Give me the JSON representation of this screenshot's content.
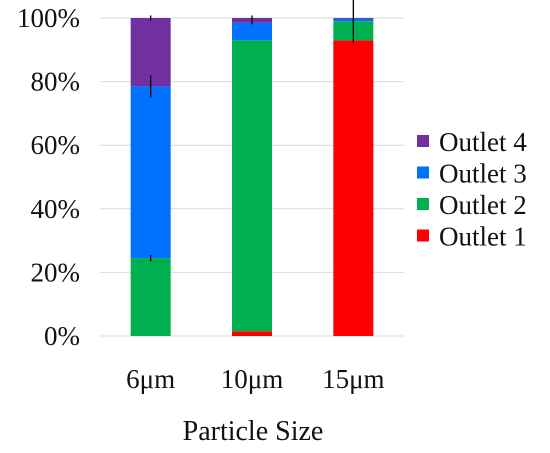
{
  "chart_data": {
    "type": "bar",
    "stacked": true,
    "percent_stacked": true,
    "title": "",
    "xlabel": "Particle Size",
    "ylabel": "",
    "categories": [
      "6μm",
      "10μm",
      "15μm"
    ],
    "ylim": [
      0,
      100
    ],
    "yticks": [
      0,
      20,
      40,
      60,
      80,
      100
    ],
    "ytick_labels": [
      "0%",
      "20%",
      "40%",
      "60%",
      "80%",
      "100%"
    ],
    "grid": true,
    "legend_placement": "right",
    "series": [
      {
        "name": "Outlet 1",
        "color": "#ff0000",
        "values": [
          0,
          1.5,
          93
        ],
        "error": [
          0,
          0,
          0
        ]
      },
      {
        "name": "Outlet 2",
        "color": "#00b050",
        "values": [
          24.5,
          91.5,
          6
        ],
        "error": [
          1,
          0,
          7
        ]
      },
      {
        "name": "Outlet 3",
        "color": "#0070ff",
        "values": [
          54,
          5.5,
          0.7
        ],
        "error": [
          3.5,
          0.5,
          0
        ]
      },
      {
        "name": "Outlet 4",
        "color": "#7030a0",
        "values": [
          21.5,
          1.5,
          0.3
        ],
        "error": [
          0.8,
          0.8,
          0
        ]
      }
    ],
    "legend_order": [
      "Outlet 4",
      "Outlet 3",
      "Outlet 2",
      "Outlet 1"
    ]
  }
}
